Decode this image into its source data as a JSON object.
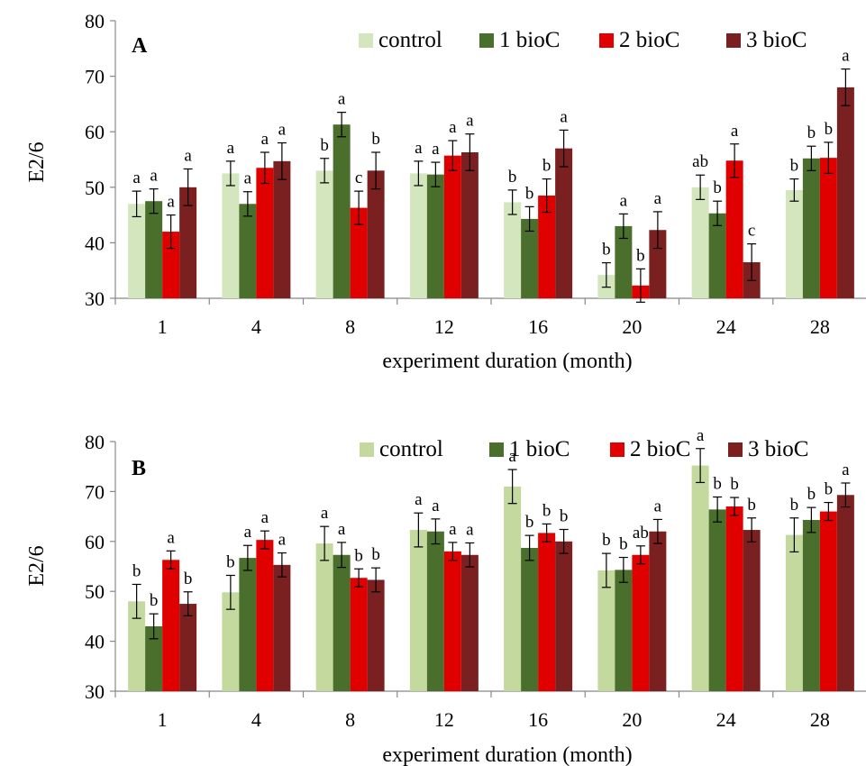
{
  "colors": {
    "control": "#d4e6bd",
    "control_b": "#c3d99e",
    "bioC1": "#4a6e2c",
    "bioC2": "#e00000",
    "bioC3": "#7a2020"
  },
  "chart_data": [
    {
      "type": "bar",
      "panel_label": "A",
      "xlabel": "experiment duration (month)",
      "ylabel": "E2/6",
      "ylim": [
        30,
        80
      ],
      "yticks": [
        30,
        40,
        50,
        60,
        70,
        80
      ],
      "categories": [
        "1",
        "4",
        "8",
        "12",
        "16",
        "20",
        "24",
        "28"
      ],
      "legend_position": "top-right",
      "series": [
        {
          "name": "control",
          "color_key": "control",
          "values": [
            47.0,
            52.5,
            53.0,
            52.5,
            47.3,
            34.2,
            50.0,
            49.5
          ],
          "errors": [
            2.3,
            2.2,
            2.2,
            2.2,
            2.2,
            2.2,
            2.2,
            2.0
          ],
          "letters": [
            "a",
            "a",
            "b",
            "a",
            "b",
            "b",
            "ab",
            "b"
          ]
        },
        {
          "name": "1 bioC",
          "color_key": "bioC1",
          "values": [
            47.5,
            47.0,
            61.3,
            52.3,
            44.3,
            43.0,
            45.3,
            55.2
          ],
          "errors": [
            2.2,
            2.2,
            2.2,
            2.2,
            2.2,
            2.2,
            2.2,
            2.2
          ],
          "letters": [
            "a",
            "a",
            "a",
            "a",
            "b",
            "a",
            "b",
            "b"
          ]
        },
        {
          "name": "2 bioC",
          "color_key": "bioC2",
          "values": [
            42.0,
            53.5,
            46.3,
            55.7,
            48.5,
            32.3,
            54.8,
            55.3
          ],
          "errors": [
            3.0,
            2.8,
            3.0,
            2.7,
            3.0,
            3.0,
            3.0,
            2.8
          ],
          "letters": [
            "a",
            "a",
            "c",
            "a",
            "b",
            "b",
            "a",
            "b"
          ]
        },
        {
          "name": "3 bioC",
          "color_key": "bioC3",
          "values": [
            50.0,
            54.7,
            53.0,
            56.3,
            57.0,
            42.3,
            36.5,
            68.0
          ],
          "errors": [
            3.3,
            3.3,
            3.3,
            3.3,
            3.3,
            3.3,
            3.3,
            3.3
          ],
          "letters": [
            "a",
            "a",
            "b",
            "a",
            "a",
            "a",
            "c",
            "a"
          ]
        }
      ]
    },
    {
      "type": "bar",
      "panel_label": "B",
      "xlabel": "experiment duration (month)",
      "ylabel": "E2/6",
      "ylim": [
        30,
        80
      ],
      "yticks": [
        30,
        40,
        50,
        60,
        70,
        80
      ],
      "categories": [
        "1",
        "4",
        "8",
        "12",
        "16",
        "20",
        "24",
        "28"
      ],
      "legend_position": "top-right",
      "series": [
        {
          "name": "control",
          "color_key": "control_b",
          "values": [
            48.0,
            49.8,
            59.6,
            62.3,
            71.0,
            54.2,
            75.2,
            61.3
          ],
          "errors": [
            3.4,
            3.4,
            3.4,
            3.4,
            3.4,
            3.4,
            3.4,
            3.4
          ],
          "letters": [
            "b",
            "b",
            "a",
            "a",
            "a",
            "b",
            "a",
            "b"
          ]
        },
        {
          "name": "1 bioC",
          "color_key": "bioC1",
          "values": [
            43.0,
            56.7,
            57.3,
            62.0,
            58.7,
            54.3,
            66.4,
            64.3
          ],
          "errors": [
            2.5,
            2.5,
            2.5,
            2.5,
            2.5,
            2.5,
            2.5,
            2.5
          ],
          "letters": [
            "b",
            "a",
            "a",
            "a",
            "b",
            "b",
            "b",
            "b"
          ]
        },
        {
          "name": "2 bioC",
          "color_key": "bioC2",
          "values": [
            56.3,
            60.3,
            52.7,
            58.0,
            61.7,
            57.3,
            67.0,
            66.0
          ],
          "errors": [
            1.8,
            1.8,
            1.8,
            1.8,
            1.8,
            1.8,
            1.8,
            1.8
          ],
          "letters": [
            "a",
            "a",
            "b",
            "a",
            "b",
            "ab",
            "b",
            "b"
          ]
        },
        {
          "name": "3 bioC",
          "color_key": "bioC3",
          "values": [
            47.5,
            55.3,
            52.3,
            57.3,
            60.0,
            62.0,
            62.3,
            69.3
          ],
          "errors": [
            2.4,
            2.4,
            2.4,
            2.4,
            2.4,
            2.4,
            2.4,
            2.4
          ],
          "letters": [
            "b",
            "a",
            "b",
            "a",
            "b",
            "a",
            "b",
            "a"
          ]
        }
      ]
    }
  ]
}
